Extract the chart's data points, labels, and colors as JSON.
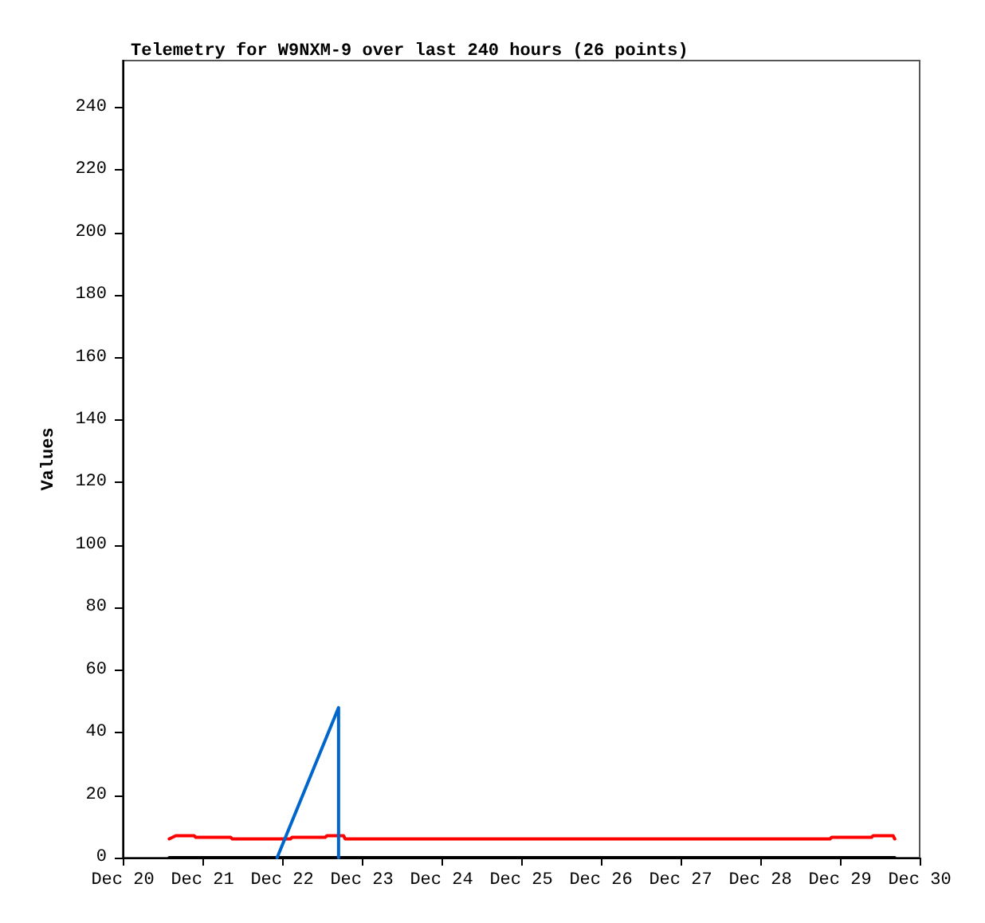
{
  "chart_data": {
    "type": "line",
    "title": "Telemetry for W9NXM-9 over last 240 hours (26 points)",
    "ylabel": "Values",
    "xlim": [
      "--12-20",
      "--12-30"
    ],
    "xticks": [
      {
        "value": "--12-20",
        "label": "Dec 20"
      },
      {
        "value": "--12-21",
        "label": "Dec 21"
      },
      {
        "value": "--12-22",
        "label": "Dec 22"
      },
      {
        "value": "--12-23",
        "label": "Dec 23"
      },
      {
        "value": "--12-24",
        "label": "Dec 24"
      },
      {
        "value": "--12-25",
        "label": "Dec 25"
      },
      {
        "value": "--12-26",
        "label": "Dec 26"
      },
      {
        "value": "--12-27",
        "label": "Dec 27"
      },
      {
        "value": "--12-28",
        "label": "Dec 28"
      },
      {
        "value": "--12-29",
        "label": "Dec 29"
      },
      {
        "value": "--12-30",
        "label": "Dec 30"
      }
    ],
    "ylim": [
      0,
      255
    ],
    "yticks": [
      0,
      20,
      40,
      60,
      80,
      100,
      120,
      140,
      160,
      180,
      200,
      220,
      240
    ],
    "grid": false,
    "marker": "none",
    "line_style": "solid",
    "series": [
      {
        "color": "#000000",
        "x": [
          "--12-20T14:00",
          "--12-29T16:30"
        ],
        "values": [
          0,
          0
        ]
      },
      {
        "color": "#ff0000",
        "x": [
          "--12-20T14:00",
          "--12-20T16:00",
          "--12-20T21:30",
          "--12-20T22:00",
          "--12-21T08:30",
          "--12-21T09:00",
          "--12-22T02:30",
          "--12-22T03:00",
          "--12-22T13:00",
          "--12-22T13:30",
          "--12-22T18:30",
          "--12-22T19:00",
          "--12-28T21:00",
          "--12-28T21:30",
          "--12-29T09:30",
          "--12-29T10:00",
          "--12-29T16:00",
          "--12-29T16:30"
        ],
        "values": [
          6,
          7,
          7,
          6.5,
          6.5,
          6,
          6,
          6.5,
          6.5,
          7,
          7,
          6,
          6,
          6.5,
          6.5,
          7,
          7,
          6
        ]
      },
      {
        "color": "#0066cc",
        "x": [
          "--12-21T22:30",
          "--12-22T17:00",
          "--12-22T17:00"
        ],
        "values": [
          0,
          48,
          0
        ]
      }
    ]
  }
}
